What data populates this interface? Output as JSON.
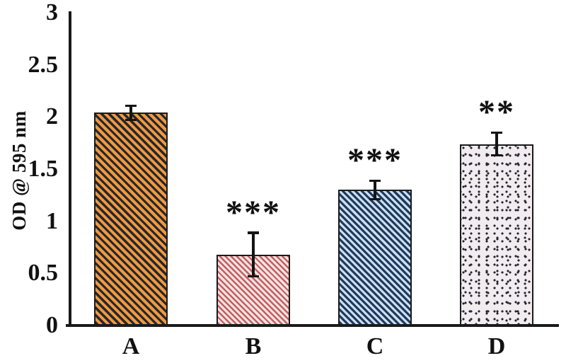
{
  "figure": {
    "background": "#ffffff",
    "ink_color": "#1a1a1a"
  },
  "chart_data": {
    "type": "bar",
    "title": "",
    "ylabel": "OD @ 595 nm",
    "xlabel": "",
    "ylim": [
      0,
      3
    ],
    "ytick_labels": [
      "0",
      "0.5",
      "1",
      "1.5",
      "2",
      "2.5",
      "3"
    ],
    "grid": false,
    "legend": "none",
    "categories": [
      "A",
      "B",
      "C",
      "D"
    ],
    "values": [
      2.04,
      0.68,
      1.3,
      1.74
    ],
    "error_bars": [
      0.07,
      0.21,
      0.09,
      0.11
    ],
    "significance": [
      "",
      "***",
      "***",
      "**"
    ],
    "bar_styles": [
      {
        "pattern": "diagonal-stripes",
        "bg": "#f0993f",
        "fg": "#232730"
      },
      {
        "pattern": "diagonal-stripes",
        "bg": "#f9e2e0",
        "fg": "#bf5f62"
      },
      {
        "pattern": "diagonal-stripes",
        "bg": "#ccdef1",
        "fg": "#1f3a5c"
      },
      {
        "pattern": "stipple-dots",
        "bg": "#f0ecef",
        "fg": "#292330"
      }
    ]
  }
}
